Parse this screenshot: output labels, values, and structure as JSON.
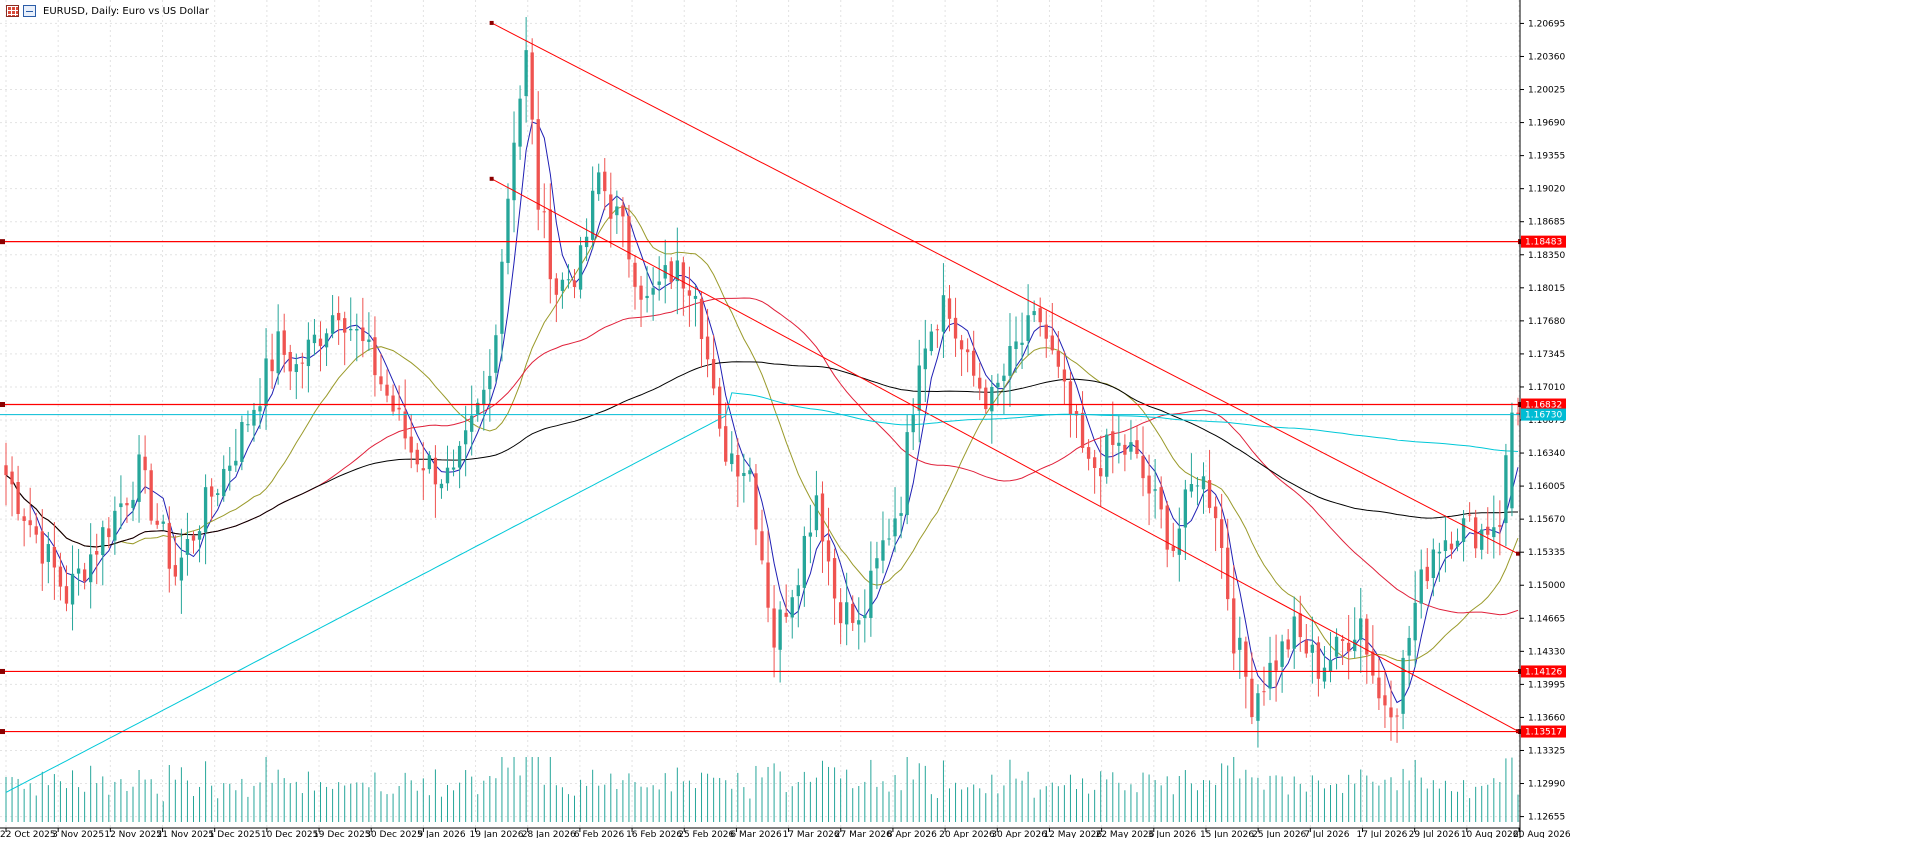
{
  "header": {
    "title": "EURUSD, Daily:  Euro vs US Dollar",
    "icons": [
      "chart-grid-icon",
      "chart-window-icon"
    ]
  },
  "chart_data": {
    "type": "candlestick",
    "symbol": "EURUSD",
    "timeframe": "Daily",
    "title": "EURUSD, Daily:  Euro vs US Dollar",
    "ylim": [
      1.126,
      1.2075
    ],
    "price_ticks": [
      "1.20695",
      "1.20360",
      "1.20025",
      "1.19690",
      "1.19355",
      "1.19020",
      "1.18685",
      "1.18350",
      "1.18015",
      "1.17680",
      "1.17345",
      "1.17010",
      "1.16675",
      "1.16340",
      "1.16005",
      "1.15670",
      "1.15335",
      "1.15000",
      "1.14665",
      "1.14330",
      "1.13995",
      "1.13660",
      "1.13325",
      "1.12990",
      "1.12655"
    ],
    "date_ticks": [
      "22 Oct 2025",
      "3 Nov 2025",
      "12 Nov 2025",
      "21 Nov 2025",
      "1 Dec 2025",
      "10 Dec 2025",
      "19 Dec 2025",
      "30 Dec 2025",
      "9 Jan 2026",
      "19 Jan 2026",
      "28 Jan 2026",
      "6 Feb 2026",
      "16 Feb 2026",
      "25 Feb 2026",
      "6 Mar 2026",
      "17 Mar 2026",
      "27 Mar 2026",
      "8 Apr 2026",
      "20 Apr 2026",
      "30 Apr 2026",
      "12 May 2026",
      "22 May 2026",
      "3 Jun 2026",
      "15 Jun 2026",
      "25 Jun 2026",
      "7 Jul 2026",
      "17 Jul 2026",
      "29 Jul 2026",
      "10 Aug 2026",
      "20 Aug 2026"
    ],
    "horizontal_levels": [
      {
        "value": 1.18483,
        "label": "1.18483",
        "color": "#ff0000"
      },
      {
        "value": 1.16832,
        "label": "1.16832",
        "color": "#ff0000"
      },
      {
        "value": 1.14126,
        "label": "1.14126",
        "color": "#ff0000"
      },
      {
        "value": 1.13517,
        "label": "1.13517",
        "color": "#ff0000"
      }
    ],
    "current_price": {
      "value": 1.1673,
      "label": "1.16730",
      "color": "#00bcd4"
    },
    "trend_lines": [
      {
        "name": "upper-trendline",
        "from": {
          "date": "27 Jan 2026",
          "price": 1.207
        },
        "to": {
          "date": "20 Aug 2026",
          "price": 1.1532
        },
        "color": "#ff0000"
      },
      {
        "name": "lower-trendline",
        "from": {
          "date": "27 Jan 2026",
          "price": 1.1912
        },
        "to": {
          "date": "20 Aug 2026",
          "price": 1.1352
        },
        "color": "#ff0000"
      }
    ],
    "moving_averages": [
      {
        "name": "ma-fast",
        "color": "#1f1fb4"
      },
      {
        "name": "ma-medium",
        "color": "#9a9a2a"
      },
      {
        "name": "ma-slow",
        "color": "#e0203a"
      },
      {
        "name": "ma-longer",
        "color": "#000000"
      },
      {
        "name": "ma-longest",
        "color": "#00c8d8"
      }
    ],
    "colors": {
      "bull": "#26a69a",
      "bear": "#ef5350",
      "volume": "#26a69a",
      "grid": "#e6e6e6"
    },
    "close_waypoints": [
      [
        0,
        1.1612
      ],
      [
        10,
        1.149
      ],
      [
        16,
        1.1552
      ],
      [
        22,
        1.1615
      ],
      [
        28,
        1.1512
      ],
      [
        32,
        1.1568
      ],
      [
        38,
        1.164
      ],
      [
        45,
        1.1742
      ],
      [
        48,
        1.172
      ],
      [
        55,
        1.1785
      ],
      [
        61,
        1.172
      ],
      [
        67,
        1.1637
      ],
      [
        72,
        1.1612
      ],
      [
        74,
        1.1605
      ],
      [
        80,
        1.171
      ],
      [
        84,
        1.196
      ],
      [
        86,
        1.2035
      ],
      [
        88,
        1.189
      ],
      [
        91,
        1.18
      ],
      [
        95,
        1.1825
      ],
      [
        98,
        1.1915
      ],
      [
        102,
        1.1858
      ],
      [
        106,
        1.1785
      ],
      [
        110,
        1.1818
      ],
      [
        114,
        1.181
      ],
      [
        118,
        1.1645
      ],
      [
        123,
        1.1617
      ],
      [
        127,
        1.1445
      ],
      [
        131,
        1.152
      ],
      [
        134,
        1.1595
      ],
      [
        137,
        1.149
      ],
      [
        141,
        1.1455
      ],
      [
        145,
        1.154
      ],
      [
        148,
        1.159
      ],
      [
        151,
        1.174
      ],
      [
        155,
        1.179
      ],
      [
        159,
        1.172
      ],
      [
        163,
        1.1685
      ],
      [
        167,
        1.174
      ],
      [
        171,
        1.177
      ],
      [
        175,
        1.169
      ],
      [
        179,
        1.1615
      ],
      [
        183,
        1.164
      ],
      [
        186,
        1.1635
      ],
      [
        190,
        1.1582
      ],
      [
        193,
        1.154
      ],
      [
        197,
        1.1615
      ],
      [
        200,
        1.158
      ],
      [
        203,
        1.145
      ],
      [
        206,
        1.1385
      ],
      [
        209,
        1.1415
      ],
      [
        213,
        1.1452
      ],
      [
        217,
        1.1418
      ],
      [
        220,
        1.1432
      ],
      [
        224,
        1.1467
      ],
      [
        227,
        1.1385
      ],
      [
        230,
        1.1385
      ],
      [
        233,
        1.148
      ],
      [
        236,
        1.154
      ],
      [
        240,
        1.156
      ],
      [
        244,
        1.1555
      ],
      [
        247,
        1.157
      ],
      [
        249,
        1.1675
      ],
      [
        250,
        1.1673
      ]
    ]
  }
}
